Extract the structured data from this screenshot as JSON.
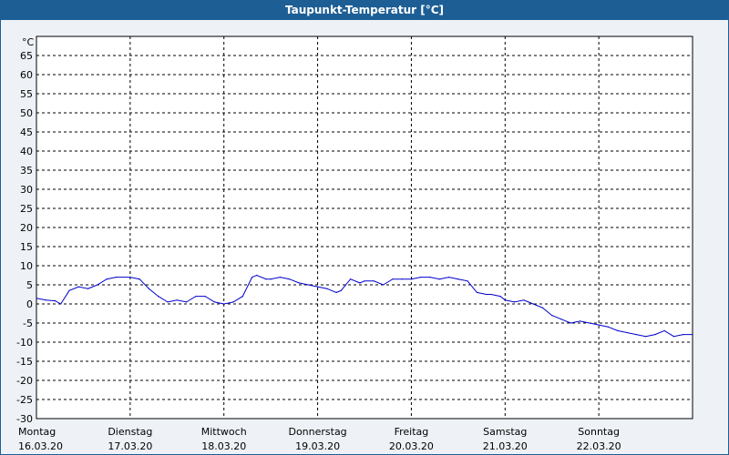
{
  "window": {
    "title": "Taupunkt-Temperatur [°C]"
  },
  "colors": {
    "titlebar": "#1d5f95",
    "background": "#eef2f7",
    "plot_background": "#ffffff",
    "series": "#0000cc",
    "grid": "#000000"
  },
  "chart_data": {
    "type": "line",
    "title": "Taupunkt-Temperatur [°C]",
    "ylabel": "°C",
    "ylim": [
      -30,
      70
    ],
    "yticks": [
      65,
      60,
      55,
      50,
      45,
      40,
      35,
      30,
      25,
      20,
      15,
      10,
      5,
      0,
      -5,
      -10,
      -15,
      -20,
      -25,
      -30
    ],
    "xlim": [
      0,
      7
    ],
    "grid": true,
    "x_day_labels": [
      {
        "day": "Montag",
        "date": "16.03.20"
      },
      {
        "day": "Dienstag",
        "date": "17.03.20"
      },
      {
        "day": "Mittwoch",
        "date": "18.03.20"
      },
      {
        "day": "Donnerstag",
        "date": "19.03.20"
      },
      {
        "day": "Freitag",
        "date": "20.03.20"
      },
      {
        "day": "Samstag",
        "date": "21.03.20"
      },
      {
        "day": "Sonntag",
        "date": "22.03.20"
      }
    ],
    "series": [
      {
        "x": [
          0,
          0.1,
          0.2,
          0.26,
          0.35,
          0.45,
          0.55,
          0.65,
          0.75,
          0.85,
          1.0,
          1.1,
          1.2,
          1.3,
          1.4,
          1.5,
          1.6,
          1.7,
          1.8,
          1.9,
          2.0,
          2.1,
          2.2,
          2.3,
          2.35,
          2.45,
          2.5,
          2.6,
          2.7,
          2.8,
          2.9,
          3.0,
          3.1,
          3.2,
          3.25,
          3.35,
          3.45,
          3.5,
          3.6,
          3.7,
          3.8,
          3.9,
          4.0,
          4.1,
          4.2,
          4.3,
          4.4,
          4.5,
          4.6,
          4.7,
          4.8,
          4.85,
          4.95,
          5.0,
          5.1,
          5.2,
          5.3,
          5.4,
          5.5,
          5.6,
          5.7,
          5.8,
          5.9,
          6.0,
          6.1,
          6.2,
          6.3,
          6.4,
          6.5,
          6.6,
          6.7,
          6.8,
          6.9,
          7.0
        ],
        "y": [
          1.5,
          1.0,
          0.8,
          0,
          3.5,
          4.5,
          4,
          5,
          6.5,
          7,
          7,
          6.5,
          4,
          2,
          0.5,
          1,
          0.5,
          2,
          2,
          0.5,
          0,
          0.5,
          2,
          7,
          7.5,
          6.5,
          6.5,
          7,
          6.5,
          5.5,
          5,
          4.5,
          4,
          3,
          3.5,
          6.5,
          5.5,
          6,
          6,
          5,
          6.5,
          6.5,
          6.5,
          7,
          7,
          6.5,
          7,
          6.5,
          6,
          3,
          2.5,
          2.5,
          2,
          1,
          0.5,
          1,
          0,
          -1,
          -3,
          -4,
          -5,
          -4.5,
          -5,
          -5.5,
          -6,
          -7,
          -7.5,
          -8,
          -8.5,
          -8,
          -7,
          -8.5,
          -8,
          -8
        ]
      }
    ]
  }
}
